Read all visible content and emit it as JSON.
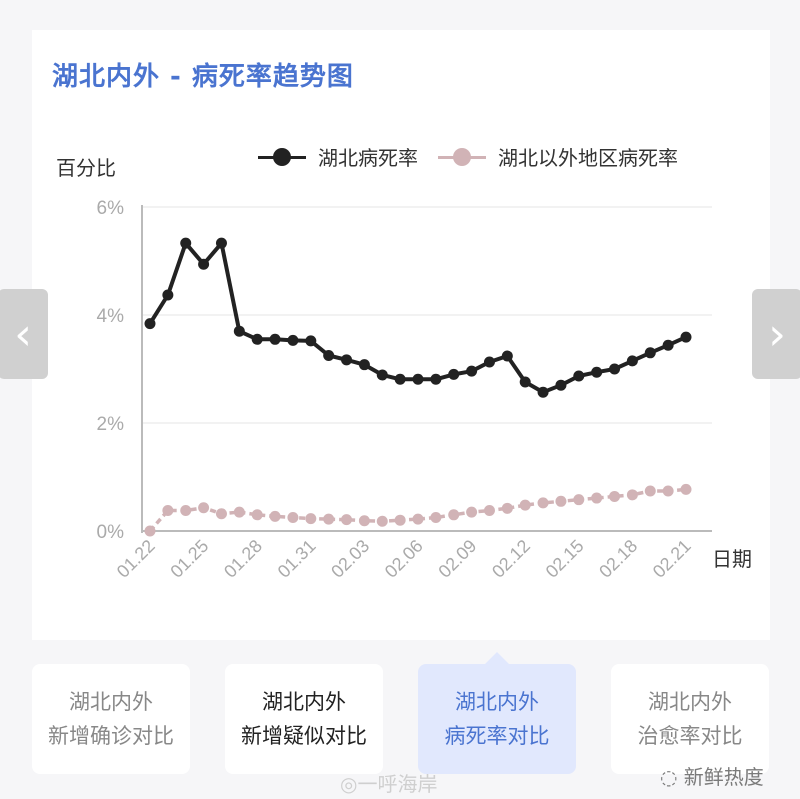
{
  "card": {
    "title": "湖北内外 - 病死率趋势图",
    "ylabel": "百分比",
    "xlabel": "日期"
  },
  "legend": [
    {
      "label": "湖北病死率",
      "color": "#222222"
    },
    {
      "label": "湖北以外地区病死率",
      "color": "#d1b3b6"
    }
  ],
  "nav": {
    "prev_icon": "chevron-left-icon",
    "next_icon": "chevron-right-icon",
    "prev": "‹",
    "next": "›"
  },
  "tabs": [
    {
      "line1": "湖北内外",
      "line2": "新增确诊对比",
      "state": "normal"
    },
    {
      "line1": "湖北内外",
      "line2": "新增疑似对比",
      "state": "dark"
    },
    {
      "line1": "湖北内外",
      "line2": "病死率对比",
      "state": "active"
    },
    {
      "line1": "湖北内外",
      "line2": "治愈率对比",
      "state": "normal"
    }
  ],
  "watermarks": {
    "weibo": "◎一呼海岸",
    "wechat": "◌ 新鲜热度"
  },
  "colors": {
    "accent": "#4a74d0",
    "hubei": "#222222",
    "outside": "#d1b3b6",
    "grid": "#eeeeee",
    "axis": "#bbbbbb",
    "tick": "#aaaaaa"
  },
  "chart_data": {
    "type": "line",
    "title": "湖北内外 - 病死率趋势图",
    "xlabel": "日期",
    "ylabel": "百分比",
    "ylim": [
      0,
      6
    ],
    "yticks": [
      "0%",
      "2%",
      "4%",
      "6%"
    ],
    "xtick_labels": [
      "01.22",
      "01.25",
      "01.28",
      "01.31",
      "02.03",
      "02.06",
      "02.09",
      "02.12",
      "02.15",
      "02.18",
      "02.21"
    ],
    "legend_position": "top",
    "grid": true,
    "x": [
      "01.22",
      "01.23",
      "01.24",
      "01.25",
      "01.26",
      "01.27",
      "01.28",
      "01.29",
      "01.30",
      "01.31",
      "02.01",
      "02.02",
      "02.03",
      "02.04",
      "02.05",
      "02.06",
      "02.07",
      "02.08",
      "02.09",
      "02.10",
      "02.11",
      "02.12",
      "02.13",
      "02.14",
      "02.15",
      "02.16",
      "02.17",
      "02.18",
      "02.19",
      "02.20",
      "02.21"
    ],
    "series": [
      {
        "name": "湖北病死率",
        "color": "#222222",
        "values": [
          3.84,
          4.37,
          5.33,
          4.94,
          5.33,
          3.7,
          3.55,
          3.55,
          3.53,
          3.52,
          3.25,
          3.17,
          3.08,
          2.89,
          2.81,
          2.81,
          2.81,
          2.9,
          2.96,
          3.13,
          3.24,
          2.76,
          2.57,
          2.7,
          2.87,
          2.94,
          3.0,
          3.15,
          3.3,
          3.44,
          3.59
        ]
      },
      {
        "name": "湖北以外地区病死率",
        "color": "#d1b3b6",
        "values": [
          0.0,
          0.38,
          0.38,
          0.43,
          0.32,
          0.35,
          0.3,
          0.27,
          0.25,
          0.23,
          0.22,
          0.21,
          0.19,
          0.18,
          0.2,
          0.22,
          0.25,
          0.3,
          0.35,
          0.38,
          0.42,
          0.48,
          0.52,
          0.55,
          0.58,
          0.61,
          0.64,
          0.67,
          0.74,
          0.74,
          0.77
        ]
      }
    ]
  }
}
